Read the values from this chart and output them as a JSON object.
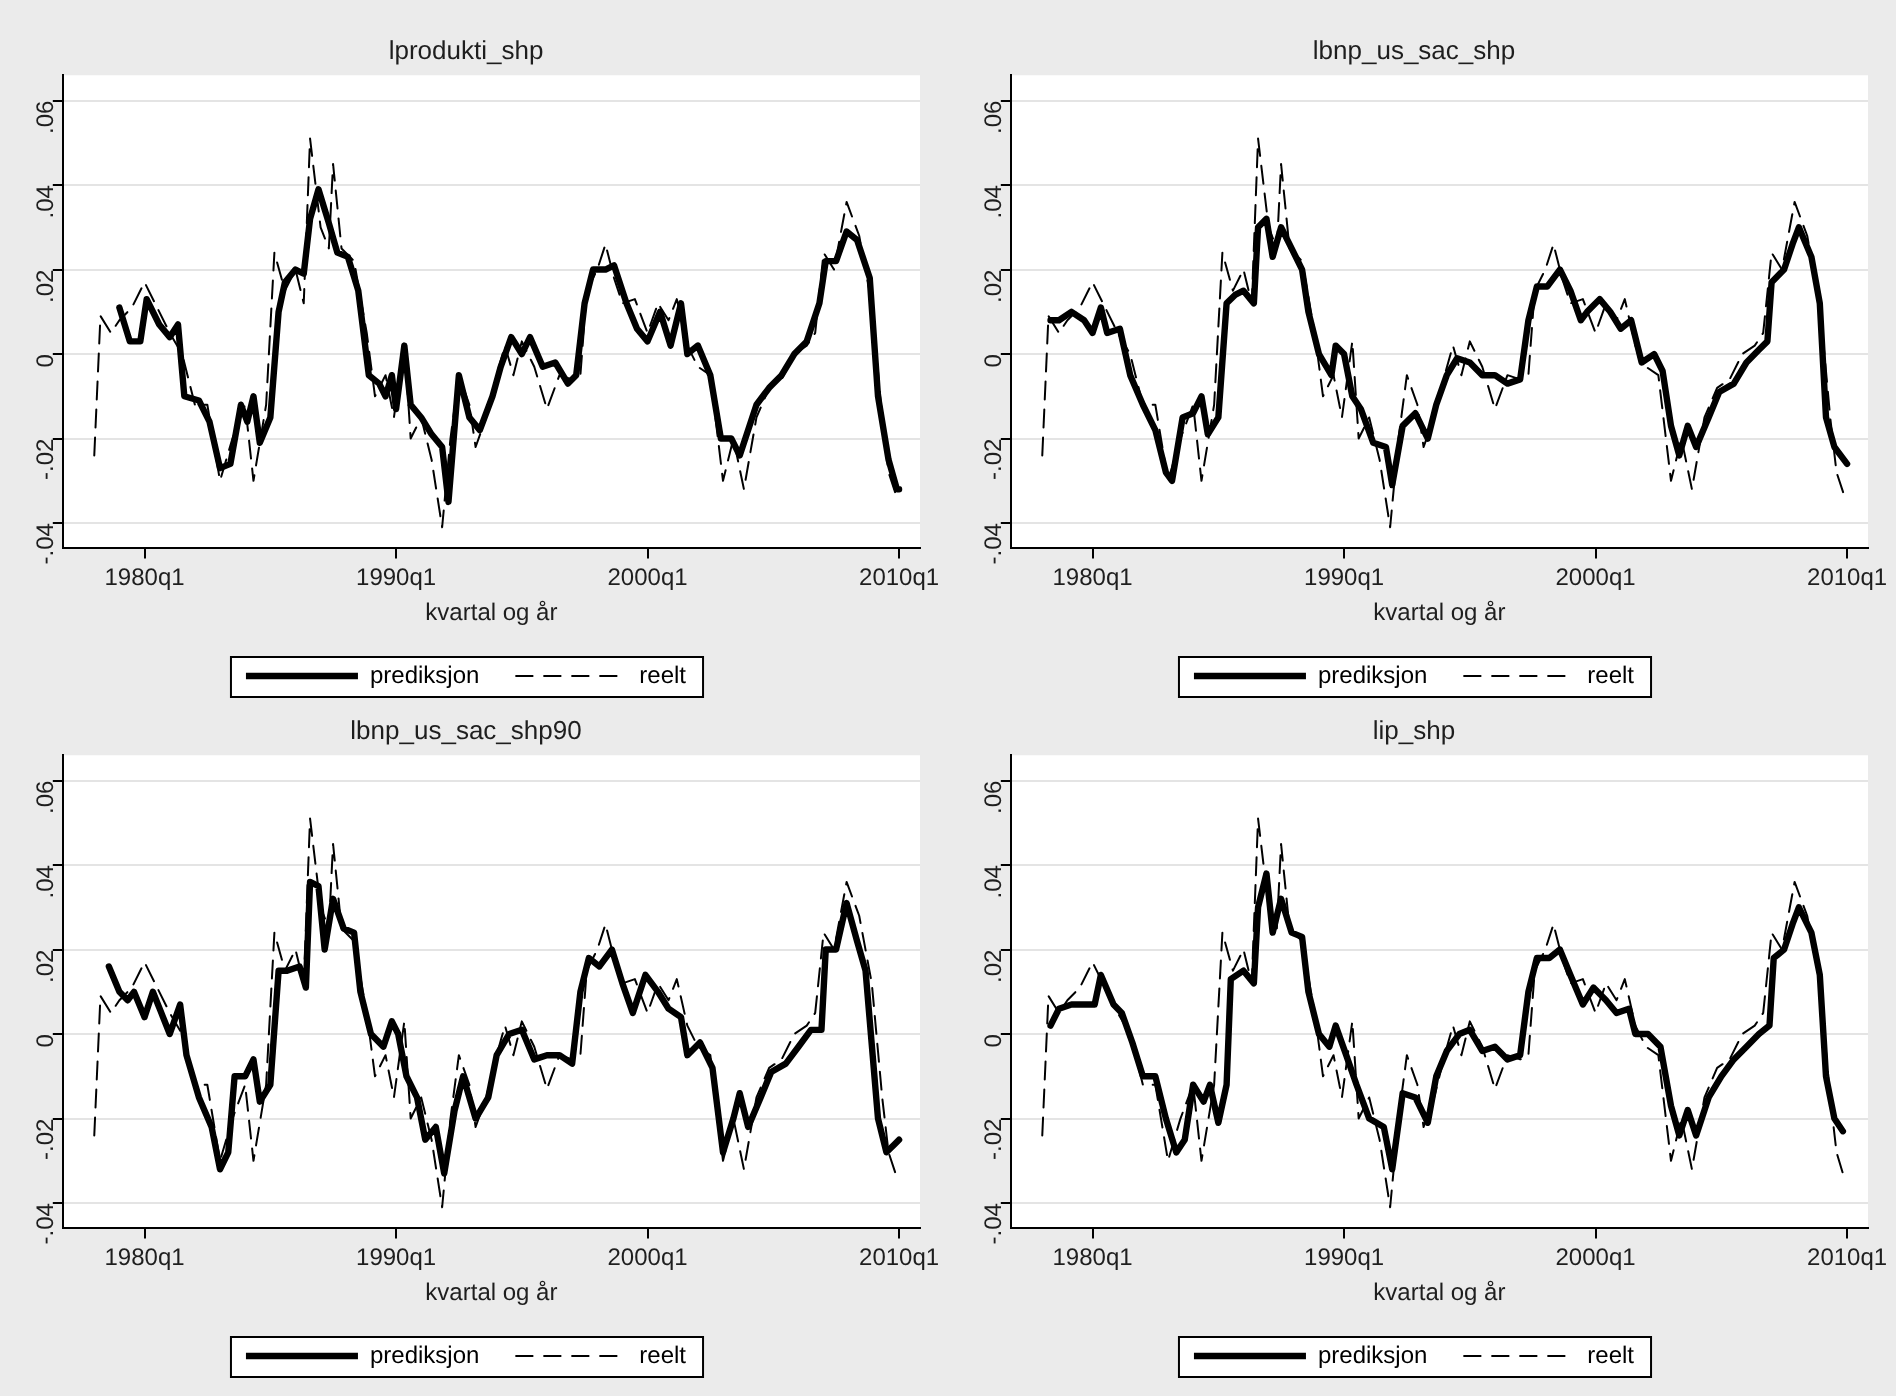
{
  "chart_data": [
    {
      "type": "line",
      "title": "lprodukti_shp",
      "xlabel": "kvartal og år",
      "xlim": [
        "1976-10",
        "2010-11"
      ],
      "ylim": [
        -0.046,
        0.066
      ],
      "xticks": [
        {
          "value": "1980-01",
          "label": "1980q1"
        },
        {
          "value": "1990-01",
          "label": "1990q1"
        },
        {
          "value": "2000-01",
          "label": "2000q1"
        },
        {
          "value": "2010-01",
          "label": "2010q1"
        }
      ],
      "yticks": [
        {
          "value": -0.04,
          "label": "-.04"
        },
        {
          "value": -0.02,
          "label": "-.02"
        },
        {
          "value": 0,
          "label": "0"
        },
        {
          "value": 0.02,
          "label": ".02"
        },
        {
          "value": 0.04,
          "label": ".04"
        },
        {
          "value": 0.06,
          "label": ".06"
        }
      ],
      "grid": "y",
      "legend": "bottom",
      "series": [
        {
          "name": "prediksjon",
          "color": "#000000",
          "line_style": "solid",
          "x": [
            "1979-01",
            "1979-06",
            "1979-11",
            "1980-02",
            "1980-08",
            "1981-01",
            "1981-05",
            "1981-08",
            "1982-03",
            "1982-08",
            "1983-01",
            "1983-06",
            "1983-11",
            "1984-02",
            "1984-05",
            "1984-08",
            "1985-01",
            "1985-05",
            "1985-08",
            "1986-01",
            "1986-05",
            "1986-08",
            "1986-12",
            "1987-05",
            "1987-09",
            "1988-02",
            "1988-07",
            "1988-12",
            "1989-05",
            "1989-08",
            "1989-11",
            "1990-01",
            "1990-05",
            "1990-08",
            "1991-01",
            "1991-06",
            "1991-11",
            "1992-02",
            "1992-07",
            "1992-12",
            "1993-05",
            "1993-11",
            "1994-03",
            "1994-08",
            "1995-01",
            "1995-05",
            "1995-11",
            "1996-05",
            "1996-11",
            "1997-03",
            "1997-07",
            "1997-11",
            "1998-05",
            "1998-09",
            "1999-03",
            "1999-08",
            "2000-01",
            "2000-07",
            "2000-12",
            "2001-05",
            "2001-08",
            "2002-01",
            "2002-07",
            "2002-12",
            "2003-05",
            "2003-09",
            "2004-05",
            "2004-11",
            "2005-05",
            "2005-11",
            "2006-05",
            "2006-11",
            "2007-02",
            "2007-07",
            "2007-12",
            "2008-05",
            "2008-11",
            "2009-03",
            "2009-08",
            "2009-12",
            "2010-01"
          ],
          "values": [
            0.011,
            0.003,
            0.003,
            0.013,
            0.007,
            0.004,
            0.007,
            -0.01,
            -0.011,
            -0.016,
            -0.027,
            -0.026,
            -0.012,
            -0.016,
            -0.01,
            -0.021,
            -0.015,
            0.01,
            0.017,
            0.02,
            0.019,
            0.032,
            0.039,
            0.031,
            0.024,
            0.023,
            0.015,
            -0.005,
            -0.007,
            -0.01,
            -0.005,
            -0.013,
            0.002,
            -0.012,
            -0.015,
            -0.019,
            -0.022,
            -0.035,
            -0.005,
            -0.015,
            -0.018,
            -0.01,
            -0.003,
            0.004,
            0,
            0.004,
            -0.003,
            -0.002,
            -0.007,
            -0.005,
            0.012,
            0.02,
            0.02,
            0.021,
            0.012,
            0.006,
            0.003,
            0.01,
            0.002,
            0.012,
            0,
            0.002,
            -0.005,
            -0.02,
            -0.02,
            -0.024,
            -0.012,
            -0.008,
            -0.005,
            0,
            0.003,
            0.012,
            0.022,
            0.022,
            0.029,
            0.027,
            0.018,
            -0.01,
            -0.025,
            -0.032,
            -0.032
          ]
        },
        {
          "name": "reelt",
          "color": "#000000",
          "line_style": "dashed",
          "x": [
            "1978-01",
            "1978-04",
            "1978-09",
            "1979-01",
            "1979-07",
            "1980-01",
            "1981-01",
            "1981-07",
            "1982-01",
            "1982-07",
            "1983-01",
            "1983-07",
            "1984-01",
            "1984-05",
            "1984-11",
            "1985-03",
            "1985-08",
            "1986-01",
            "1986-05",
            "1986-08",
            "1987-01",
            "1987-05",
            "1987-07",
            "1987-11",
            "1988-05",
            "1988-11",
            "1989-03",
            "1989-08",
            "1989-12",
            "1990-05",
            "1990-08",
            "1991-01",
            "1991-06",
            "1991-11",
            "1992-03",
            "1992-07",
            "1992-12",
            "1993-03",
            "1993-08",
            "1994-01",
            "1994-05",
            "1994-09",
            "1995-01",
            "1995-07",
            "1996-01",
            "1996-07",
            "1997-01",
            "1997-05",
            "1997-08",
            "1998-01",
            "1998-05",
            "1998-09",
            "1999-01",
            "1999-07",
            "2000-01",
            "2000-06",
            "2000-11",
            "2001-03",
            "2001-08",
            "2002-01",
            "2002-07",
            "2003-01",
            "2003-06",
            "2003-11",
            "2004-05",
            "2004-11",
            "2005-05",
            "2005-11",
            "2006-05",
            "2006-09",
            "2007-01",
            "2007-06",
            "2007-12",
            "2008-06",
            "2008-12",
            "2009-05",
            "2009-08",
            "2009-12"
          ],
          "values": [
            -0.024,
            0.009,
            0.005,
            0.008,
            0.011,
            0.017,
            0.005,
            0,
            -0.012,
            -0.012,
            -0.03,
            -0.02,
            -0.012,
            -0.03,
            -0.012,
            0.024,
            0.015,
            0.02,
            0.012,
            0.051,
            0.03,
            0.025,
            0.045,
            0.025,
            0.022,
            0.005,
            -0.01,
            -0.005,
            -0.015,
            0.003,
            -0.02,
            -0.015,
            -0.025,
            -0.041,
            -0.02,
            -0.005,
            -0.012,
            -0.022,
            -0.015,
            -0.005,
            0.002,
            -0.005,
            0.003,
            -0.003,
            -0.013,
            -0.005,
            -0.006,
            -0.005,
            0.015,
            0.02,
            0.026,
            0.018,
            0.012,
            0.013,
            0.005,
            0.012,
            0.008,
            0.013,
            0.002,
            -0.003,
            -0.005,
            -0.03,
            -0.02,
            -0.032,
            -0.015,
            -0.008,
            -0.006,
            0,
            0.002,
            0.005,
            0.024,
            0.02,
            0.036,
            0.028,
            0.012,
            -0.015,
            -0.028,
            -0.034
          ]
        }
      ]
    },
    {
      "type": "line",
      "title": "lbnp_us_sac_shp",
      "xlabel": "kvartal og år",
      "xlim": [
        "1976-10",
        "2010-11"
      ],
      "ylim": [
        -0.046,
        0.066
      ],
      "xticks": [
        {
          "value": "1980-01",
          "label": "1980q1"
        },
        {
          "value": "1990-01",
          "label": "1990q1"
        },
        {
          "value": "2000-01",
          "label": "2000q1"
        },
        {
          "value": "2010-01",
          "label": "2010q1"
        }
      ],
      "yticks": [
        {
          "value": -0.04,
          "label": "-.04"
        },
        {
          "value": -0.02,
          "label": "-.02"
        },
        {
          "value": 0,
          "label": "0"
        },
        {
          "value": 0.02,
          "label": ".02"
        },
        {
          "value": 0.04,
          "label": ".04"
        },
        {
          "value": 0.06,
          "label": ".06"
        }
      ],
      "grid": "y",
      "legend": "bottom",
      "series": [
        {
          "name": "prediksjon",
          "color": "#000000",
          "line_style": "solid",
          "x": [
            "1978-05",
            "1978-09",
            "1979-03",
            "1979-09",
            "1980-01",
            "1980-05",
            "1980-08",
            "1981-02",
            "1981-07",
            "1982-01",
            "1982-07",
            "1982-12",
            "1983-03",
            "1983-08",
            "1984-01",
            "1984-05",
            "1984-08",
            "1985-01",
            "1985-05",
            "1985-09",
            "1986-01",
            "1986-06",
            "1986-08",
            "1986-12",
            "1987-03",
            "1987-07",
            "1987-12",
            "1988-05",
            "1988-08",
            "1989-01",
            "1989-07",
            "1989-09",
            "1990-01",
            "1990-05",
            "1990-09",
            "1991-03",
            "1991-09",
            "1991-12",
            "1992-05",
            "1992-11",
            "1993-05",
            "1993-09",
            "1994-02",
            "1994-07",
            "1995-01",
            "1995-07",
            "1996-01",
            "1996-07",
            "1997-01",
            "1997-05",
            "1997-09",
            "1998-02",
            "1998-08",
            "1999-01",
            "1999-06",
            "1999-09",
            "2000-03",
            "2000-08",
            "2001-01",
            "2001-06",
            "2001-11",
            "2002-05",
            "2002-09",
            "2003-01",
            "2003-05",
            "2003-09",
            "2004-01",
            "2004-07",
            "2004-12",
            "2005-07",
            "2006-01",
            "2006-07",
            "2006-11",
            "2007-01",
            "2007-07",
            "2007-11",
            "2008-02",
            "2008-08",
            "2008-12",
            "2009-03",
            "2009-07",
            "2010-01"
          ],
          "values": [
            0.008,
            0.008,
            0.01,
            0.008,
            0.005,
            0.011,
            0.005,
            0.006,
            -0.005,
            -0.012,
            -0.018,
            -0.028,
            -0.03,
            -0.015,
            -0.014,
            -0.01,
            -0.019,
            -0.015,
            0.012,
            0.014,
            0.015,
            0.012,
            0.03,
            0.032,
            0.023,
            0.03,
            0.025,
            0.02,
            0.01,
            0,
            -0.005,
            0.002,
            0,
            -0.01,
            -0.013,
            -0.021,
            -0.022,
            -0.031,
            -0.017,
            -0.014,
            -0.02,
            -0.012,
            -0.005,
            -0.001,
            -0.002,
            -0.005,
            -0.005,
            -0.007,
            -0.006,
            0.008,
            0.016,
            0.016,
            0.02,
            0.015,
            0.008,
            0.01,
            0.013,
            0.01,
            0.006,
            0.008,
            -0.002,
            0,
            -0.004,
            -0.017,
            -0.024,
            -0.017,
            -0.022,
            -0.015,
            -0.009,
            -0.007,
            -0.002,
            0.001,
            0.003,
            0.017,
            0.02,
            0.026,
            0.03,
            0.023,
            0.012,
            -0.015,
            -0.022,
            -0.026
          ]
        },
        {
          "name": "reelt",
          "color": "#000000",
          "line_style": "dashed",
          "x": [
            "1978-01",
            "1978-04",
            "1978-09",
            "1979-01",
            "1979-07",
            "1980-01",
            "1981-01",
            "1981-07",
            "1982-01",
            "1982-07",
            "1983-01",
            "1983-07",
            "1984-01",
            "1984-05",
            "1984-11",
            "1985-03",
            "1985-08",
            "1986-01",
            "1986-05",
            "1986-08",
            "1987-01",
            "1987-05",
            "1987-07",
            "1987-11",
            "1988-05",
            "1988-11",
            "1989-03",
            "1989-08",
            "1989-12",
            "1990-05",
            "1990-08",
            "1991-01",
            "1991-06",
            "1991-11",
            "1992-03",
            "1992-07",
            "1992-12",
            "1993-03",
            "1993-08",
            "1994-01",
            "1994-05",
            "1994-09",
            "1995-01",
            "1995-07",
            "1996-01",
            "1996-07",
            "1997-01",
            "1997-05",
            "1997-08",
            "1998-01",
            "1998-05",
            "1998-09",
            "1999-01",
            "1999-07",
            "2000-01",
            "2000-06",
            "2000-11",
            "2001-03",
            "2001-08",
            "2002-01",
            "2002-07",
            "2003-01",
            "2003-06",
            "2003-11",
            "2004-05",
            "2004-11",
            "2005-05",
            "2005-11",
            "2006-05",
            "2006-09",
            "2007-01",
            "2007-06",
            "2007-12",
            "2008-06",
            "2008-12",
            "2009-05",
            "2009-08",
            "2009-12"
          ],
          "values": [
            -0.024,
            0.009,
            0.005,
            0.008,
            0.011,
            0.017,
            0.005,
            0,
            -0.012,
            -0.012,
            -0.03,
            -0.02,
            -0.012,
            -0.03,
            -0.012,
            0.024,
            0.015,
            0.02,
            0.012,
            0.051,
            0.03,
            0.025,
            0.045,
            0.025,
            0.022,
            0.005,
            -0.01,
            -0.005,
            -0.015,
            0.003,
            -0.02,
            -0.015,
            -0.025,
            -0.041,
            -0.02,
            -0.005,
            -0.012,
            -0.022,
            -0.015,
            -0.005,
            0.002,
            -0.005,
            0.003,
            -0.003,
            -0.013,
            -0.005,
            -0.006,
            -0.005,
            0.015,
            0.02,
            0.026,
            0.018,
            0.012,
            0.013,
            0.005,
            0.012,
            0.008,
            0.013,
            0.002,
            -0.003,
            -0.005,
            -0.03,
            -0.02,
            -0.032,
            -0.015,
            -0.008,
            -0.006,
            0,
            0.002,
            0.005,
            0.024,
            0.02,
            0.036,
            0.028,
            0.012,
            -0.015,
            -0.028,
            -0.034
          ]
        }
      ]
    },
    {
      "type": "line",
      "title": "lbnp_us_sac_shp90",
      "xlabel": "kvartal og år",
      "xlim": [
        "1976-10",
        "2010-11"
      ],
      "ylim": [
        -0.046,
        0.066
      ],
      "xticks": [
        {
          "value": "1980-01",
          "label": "1980q1"
        },
        {
          "value": "1990-01",
          "label": "1990q1"
        },
        {
          "value": "2000-01",
          "label": "2000q1"
        },
        {
          "value": "2010-01",
          "label": "2010q1"
        }
      ],
      "yticks": [
        {
          "value": -0.04,
          "label": "-.04"
        },
        {
          "value": -0.02,
          "label": "-.02"
        },
        {
          "value": 0,
          "label": "0"
        },
        {
          "value": 0.02,
          "label": ".02"
        },
        {
          "value": 0.04,
          "label": ".04"
        },
        {
          "value": 0.06,
          "label": ".06"
        }
      ],
      "grid": "y",
      "legend": "bottom",
      "series": [
        {
          "name": "prediksjon",
          "color": "#000000",
          "line_style": "solid",
          "x": [
            "1978-08",
            "1979-01",
            "1979-05",
            "1979-08",
            "1980-01",
            "1980-05",
            "1980-09",
            "1981-01",
            "1981-06",
            "1981-09",
            "1982-03",
            "1982-09",
            "1983-01",
            "1983-05",
            "1983-08",
            "1984-01",
            "1984-05",
            "1984-08",
            "1985-01",
            "1985-05",
            "1985-09",
            "1986-03",
            "1986-06",
            "1986-08",
            "1986-12",
            "1987-03",
            "1987-07",
            "1987-12",
            "1988-05",
            "1988-08",
            "1989-01",
            "1989-07",
            "1989-11",
            "1990-02",
            "1990-06",
            "1990-11",
            "1991-03",
            "1991-08",
            "1991-12",
            "1992-05",
            "1992-09",
            "1993-03",
            "1993-09",
            "1994-01",
            "1994-07",
            "1995-01",
            "1995-07",
            "1996-01",
            "1996-07",
            "1997-01",
            "1997-05",
            "1997-09",
            "1998-02",
            "1998-08",
            "1999-01",
            "1999-06",
            "1999-12",
            "2000-06",
            "2000-11",
            "2001-05",
            "2001-08",
            "2002-02",
            "2002-08",
            "2003-01",
            "2003-06",
            "2003-09",
            "2004-01",
            "2004-07",
            "2004-12",
            "2005-07",
            "2006-01",
            "2006-07",
            "2006-12",
            "2007-02",
            "2007-07",
            "2007-12",
            "2008-05",
            "2008-09",
            "2009-03",
            "2009-07",
            "2009-11",
            "2010-01"
          ],
          "values": [
            0.016,
            0.01,
            0.008,
            0.01,
            0.004,
            0.01,
            0.005,
            0,
            0.007,
            -0.005,
            -0.015,
            -0.022,
            -0.032,
            -0.028,
            -0.01,
            -0.01,
            -0.006,
            -0.016,
            -0.012,
            0.015,
            0.015,
            0.016,
            0.011,
            0.036,
            0.035,
            0.02,
            0.032,
            0.025,
            0.024,
            0.01,
            0,
            -0.003,
            0.003,
            0,
            -0.01,
            -0.015,
            -0.025,
            -0.022,
            -0.033,
            -0.018,
            -0.01,
            -0.02,
            -0.015,
            -0.005,
            0,
            0.001,
            -0.006,
            -0.005,
            -0.005,
            -0.007,
            0.01,
            0.018,
            0.016,
            0.02,
            0.012,
            0.005,
            0.014,
            0.01,
            0.006,
            0.004,
            -0.005,
            -0.002,
            -0.008,
            -0.028,
            -0.02,
            -0.014,
            -0.022,
            -0.015,
            -0.009,
            -0.007,
            -0.003,
            0.001,
            0.001,
            0.02,
            0.02,
            0.031,
            0.022,
            0.015,
            -0.02,
            -0.028,
            -0.026,
            -0.025
          ]
        },
        {
          "name": "reelt",
          "color": "#000000",
          "line_style": "dashed",
          "x": [
            "1978-01",
            "1978-04",
            "1978-09",
            "1979-01",
            "1979-07",
            "1980-01",
            "1981-01",
            "1981-07",
            "1982-01",
            "1982-07",
            "1983-01",
            "1983-07",
            "1984-01",
            "1984-05",
            "1984-11",
            "1985-03",
            "1985-08",
            "1986-01",
            "1986-05",
            "1986-08",
            "1987-01",
            "1987-05",
            "1987-07",
            "1987-11",
            "1988-05",
            "1988-11",
            "1989-03",
            "1989-08",
            "1989-12",
            "1990-05",
            "1990-08",
            "1991-01",
            "1991-06",
            "1991-11",
            "1992-03",
            "1992-07",
            "1992-12",
            "1993-03",
            "1993-08",
            "1994-01",
            "1994-05",
            "1994-09",
            "1995-01",
            "1995-07",
            "1996-01",
            "1996-07",
            "1997-01",
            "1997-05",
            "1997-08",
            "1998-01",
            "1998-05",
            "1998-09",
            "1999-01",
            "1999-07",
            "2000-01",
            "2000-06",
            "2000-11",
            "2001-03",
            "2001-08",
            "2002-01",
            "2002-07",
            "2003-01",
            "2003-06",
            "2003-11",
            "2004-05",
            "2004-11",
            "2005-05",
            "2005-11",
            "2006-05",
            "2006-09",
            "2007-01",
            "2007-06",
            "2007-12",
            "2008-06",
            "2008-12",
            "2009-05",
            "2009-08",
            "2009-12"
          ],
          "values": [
            -0.024,
            0.009,
            0.005,
            0.008,
            0.011,
            0.017,
            0.005,
            0,
            -0.012,
            -0.012,
            -0.03,
            -0.02,
            -0.012,
            -0.03,
            -0.012,
            0.024,
            0.015,
            0.02,
            0.012,
            0.051,
            0.03,
            0.025,
            0.045,
            0.025,
            0.022,
            0.005,
            -0.01,
            -0.005,
            -0.015,
            0.003,
            -0.02,
            -0.015,
            -0.025,
            -0.041,
            -0.02,
            -0.005,
            -0.012,
            -0.022,
            -0.015,
            -0.005,
            0.002,
            -0.005,
            0.003,
            -0.003,
            -0.013,
            -0.005,
            -0.006,
            -0.005,
            0.015,
            0.02,
            0.026,
            0.018,
            0.012,
            0.013,
            0.005,
            0.012,
            0.008,
            0.013,
            0.002,
            -0.003,
            -0.005,
            -0.03,
            -0.02,
            -0.032,
            -0.015,
            -0.008,
            -0.006,
            0,
            0.002,
            0.005,
            0.024,
            0.02,
            0.036,
            0.028,
            0.012,
            -0.015,
            -0.028,
            -0.034
          ]
        }
      ]
    },
    {
      "type": "line",
      "title": "lip_shp",
      "xlabel": "kvartal og år",
      "xlim": [
        "1976-10",
        "2010-11"
      ],
      "ylim": [
        -0.046,
        0.066
      ],
      "xticks": [
        {
          "value": "1980-01",
          "label": "1980q1"
        },
        {
          "value": "1990-01",
          "label": "1990q1"
        },
        {
          "value": "2000-01",
          "label": "2000q1"
        },
        {
          "value": "2010-01",
          "label": "2010q1"
        }
      ],
      "yticks": [
        {
          "value": -0.04,
          "label": "-.04"
        },
        {
          "value": -0.02,
          "label": "-.02"
        },
        {
          "value": 0,
          "label": "0"
        },
        {
          "value": 0.02,
          "label": ".02"
        },
        {
          "value": 0.04,
          "label": ".04"
        },
        {
          "value": 0.06,
          "label": ".06"
        }
      ],
      "grid": "y",
      "legend": "bottom",
      "series": [
        {
          "name": "prediksjon",
          "color": "#000000",
          "line_style": "solid",
          "x": [
            "1978-05",
            "1978-09",
            "1979-03",
            "1979-09",
            "1980-02",
            "1980-05",
            "1980-11",
            "1981-03",
            "1981-08",
            "1982-01",
            "1982-07",
            "1982-12",
            "1983-05",
            "1983-09",
            "1984-01",
            "1984-06",
            "1984-09",
            "1985-01",
            "1985-05",
            "1985-07",
            "1986-01",
            "1986-06",
            "1986-08",
            "1986-12",
            "1987-03",
            "1987-07",
            "1987-12",
            "1988-05",
            "1988-08",
            "1989-01",
            "1989-06",
            "1989-09",
            "1990-02",
            "1990-07",
            "1991-01",
            "1991-08",
            "1991-12",
            "1992-05",
            "1992-11",
            "1993-05",
            "1993-09",
            "1994-02",
            "1994-08",
            "1995-01",
            "1995-07",
            "1996-01",
            "1996-07",
            "1997-01",
            "1997-05",
            "1997-09",
            "1998-03",
            "1998-08",
            "1999-01",
            "1999-07",
            "1999-12",
            "2000-06",
            "2000-11",
            "2001-05",
            "2001-08",
            "2002-02",
            "2002-08",
            "2003-01",
            "2003-05",
            "2003-09",
            "2004-01",
            "2004-07",
            "2005-01",
            "2005-07",
            "2006-01",
            "2006-07",
            "2006-12",
            "2007-02",
            "2007-07",
            "2007-11",
            "2008-02",
            "2008-08",
            "2008-12",
            "2009-03",
            "2009-07",
            "2009-11"
          ],
          "values": [
            0.002,
            0.006,
            0.007,
            0.007,
            0.007,
            0.014,
            0.007,
            0.005,
            -0.002,
            -0.01,
            -0.01,
            -0.02,
            -0.028,
            -0.025,
            -0.012,
            -0.016,
            -0.012,
            -0.021,
            -0.012,
            0.013,
            0.015,
            0.012,
            0.03,
            0.038,
            0.024,
            0.032,
            0.024,
            0.023,
            0.01,
            0,
            -0.003,
            0.002,
            -0.005,
            -0.012,
            -0.02,
            -0.022,
            -0.032,
            -0.014,
            -0.015,
            -0.021,
            -0.01,
            -0.004,
            0,
            0.001,
            -0.004,
            -0.003,
            -0.006,
            -0.005,
            0.01,
            0.018,
            0.018,
            0.02,
            0.014,
            0.007,
            0.011,
            0.008,
            0.005,
            0.006,
            0,
            0,
            -0.003,
            -0.017,
            -0.024,
            -0.018,
            -0.024,
            -0.015,
            -0.01,
            -0.006,
            -0.003,
            0,
            0.002,
            0.018,
            0.02,
            0.026,
            0.03,
            0.024,
            0.014,
            -0.01,
            -0.02,
            -0.023
          ]
        },
        {
          "name": "reelt",
          "color": "#000000",
          "line_style": "dashed",
          "x": [
            "1978-01",
            "1978-04",
            "1978-09",
            "1979-01",
            "1979-07",
            "1980-01",
            "1981-01",
            "1981-07",
            "1982-01",
            "1982-07",
            "1983-01",
            "1983-07",
            "1984-01",
            "1984-05",
            "1984-11",
            "1985-03",
            "1985-08",
            "1986-01",
            "1986-05",
            "1986-08",
            "1987-01",
            "1987-05",
            "1987-07",
            "1987-11",
            "1988-05",
            "1988-11",
            "1989-03",
            "1989-08",
            "1989-12",
            "1990-05",
            "1990-08",
            "1991-01",
            "1991-06",
            "1991-11",
            "1992-03",
            "1992-07",
            "1992-12",
            "1993-03",
            "1993-08",
            "1994-01",
            "1994-05",
            "1994-09",
            "1995-01",
            "1995-07",
            "1996-01",
            "1996-07",
            "1997-01",
            "1997-05",
            "1997-08",
            "1998-01",
            "1998-05",
            "1998-09",
            "1999-01",
            "1999-07",
            "2000-01",
            "2000-06",
            "2000-11",
            "2001-03",
            "2001-08",
            "2002-01",
            "2002-07",
            "2003-01",
            "2003-06",
            "2003-11",
            "2004-05",
            "2004-11",
            "2005-05",
            "2005-11",
            "2006-05",
            "2006-09",
            "2007-01",
            "2007-06",
            "2007-12",
            "2008-06",
            "2008-12",
            "2009-05",
            "2009-08",
            "2009-11"
          ],
          "values": [
            -0.024,
            0.009,
            0.005,
            0.008,
            0.011,
            0.017,
            0.005,
            0,
            -0.012,
            -0.012,
            -0.03,
            -0.02,
            -0.012,
            -0.03,
            -0.012,
            0.024,
            0.015,
            0.02,
            0.012,
            0.051,
            0.03,
            0.025,
            0.045,
            0.025,
            0.022,
            0.005,
            -0.01,
            -0.005,
            -0.015,
            0.003,
            -0.02,
            -0.015,
            -0.025,
            -0.041,
            -0.02,
            -0.005,
            -0.012,
            -0.022,
            -0.015,
            -0.005,
            0.002,
            -0.005,
            0.003,
            -0.003,
            -0.013,
            -0.005,
            -0.006,
            -0.005,
            0.015,
            0.02,
            0.026,
            0.018,
            0.012,
            0.013,
            0.005,
            0.012,
            0.008,
            0.013,
            0.002,
            -0.003,
            -0.005,
            -0.03,
            -0.02,
            -0.032,
            -0.015,
            -0.008,
            -0.006,
            0,
            0.002,
            0.005,
            0.024,
            0.02,
            0.036,
            0.028,
            0.012,
            -0.015,
            -0.028,
            -0.033
          ]
        }
      ]
    }
  ]
}
